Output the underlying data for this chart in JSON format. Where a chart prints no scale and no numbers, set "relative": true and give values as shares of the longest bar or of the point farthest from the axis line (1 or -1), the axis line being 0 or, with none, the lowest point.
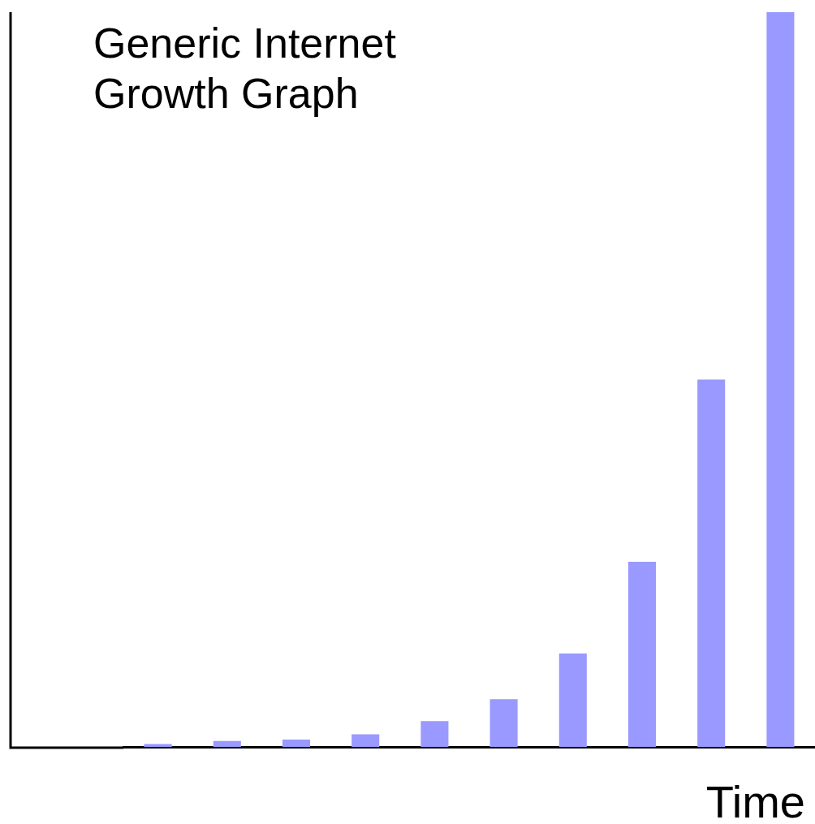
{
  "chart_data": {
    "type": "bar",
    "title": "Generic Internet Growth Graph",
    "xlabel": "Time",
    "relative": true,
    "categories": [
      null,
      null,
      null,
      null,
      null,
      null,
      null,
      null,
      null,
      null
    ],
    "values": [
      0.004,
      0.008,
      0.01,
      0.017,
      0.035,
      0.065,
      0.127,
      0.252,
      0.5,
      1
    ],
    "color": "#9999ff",
    "grid": false,
    "legend": false
  }
}
